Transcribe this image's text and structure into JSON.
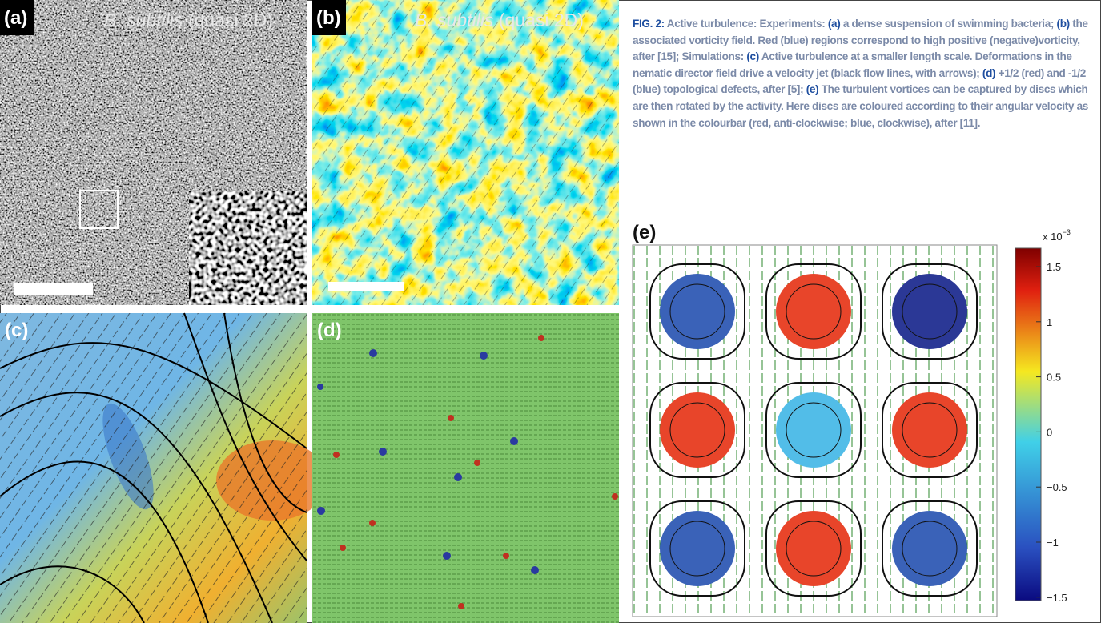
{
  "panels": [
    {
      "label": "(a)",
      "species": "B. subtilis",
      "condition": "(quasi 2D)"
    },
    {
      "label": "(b)",
      "species": "B. subtilis",
      "condition": "(quasi 2D)"
    },
    {
      "label": "(c)"
    },
    {
      "label": "(d)"
    },
    {
      "label": "(e)"
    }
  ],
  "caption": {
    "parts": [
      "FIG. 2:",
      " Active turbulence: Experiments: ",
      "(a)",
      " a dense suspension of swimming bacteria; ",
      "(b)",
      " the associated vorticity field. Red (blue) regions correspond to high positive (negative)vorticity, after [15]; Simulations: ",
      "(c)",
      " Active turbulence at a smaller length scale. Deformations in the nematic director field drive a velocity jet (black flow lines, with arrows); ",
      "(d)",
      " +1/2 (red) and -1/2 (blue) topological defects, after [5]; ",
      "(e)",
      " The turbulent vortices can be captured by discs which are then rotated by the activity. Here discs are coloured according to their angular velocity as shown in the colourbar (red, anti-clockwise; blue, clockwise), after [11]."
    ]
  },
  "colorbar": {
    "multiplier": "x 10",
    "exponent": "−3",
    "ticks": [
      "1.5",
      "1",
      "0.5",
      "0",
      "−0.5",
      "−1",
      "−1.5"
    ]
  }
}
